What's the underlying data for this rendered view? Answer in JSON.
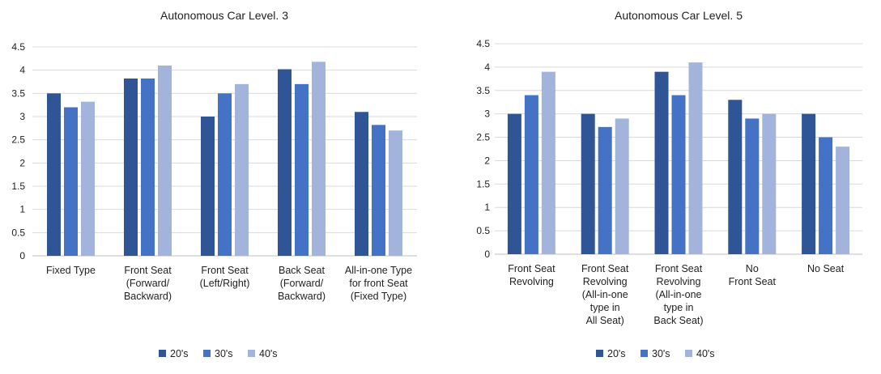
{
  "chart_data": [
    {
      "type": "bar",
      "title": "Autonomous Car Level. 3",
      "categories": [
        [
          "Fixed Type"
        ],
        [
          "Front Seat",
          "(Forward/",
          "Backward)"
        ],
        [
          "Front Seat",
          "(Left/Right)"
        ],
        [
          "Back Seat",
          "(Forward/",
          "Backward)"
        ],
        [
          "All-in-one Type",
          "for front Seat",
          "(Fixed Type)"
        ]
      ],
      "series": [
        {
          "name": "20's",
          "values": [
            3.5,
            3.82,
            3.0,
            4.02,
            3.1
          ]
        },
        {
          "name": "30's",
          "values": [
            3.2,
            3.82,
            3.5,
            3.7,
            2.82
          ]
        },
        {
          "name": "40's",
          "values": [
            3.32,
            4.1,
            3.7,
            4.18,
            2.7
          ]
        }
      ],
      "yticks": [
        "0",
        "0.5",
        "1",
        "1.5",
        "2",
        "2.5",
        "3",
        "3.5",
        "4",
        "4.5"
      ],
      "ylim": [
        0,
        4.5
      ],
      "legend_position": "bottom",
      "grid": true
    },
    {
      "type": "bar",
      "title": "Autonomous Car Level. 5",
      "categories": [
        [
          "Front Seat",
          "Revolving"
        ],
        [
          "Front Seat",
          "Revolving",
          "(All-in-one",
          "type in",
          "All Seat)"
        ],
        [
          "Front Seat",
          "Revolving",
          "(All-in-one",
          "type in",
          "Back Seat)"
        ],
        [
          "No",
          "Front Seat"
        ],
        [
          "No Seat"
        ]
      ],
      "series": [
        {
          "name": "20's",
          "values": [
            3.0,
            3.0,
            3.9,
            3.3,
            3.0
          ]
        },
        {
          "name": "30's",
          "values": [
            3.4,
            2.72,
            3.4,
            2.9,
            2.5
          ]
        },
        {
          "name": "40's",
          "values": [
            3.9,
            2.9,
            4.1,
            3.0,
            2.3
          ]
        }
      ],
      "yticks": [
        "0",
        "0.5",
        "1",
        "1.5",
        "2",
        "2.5",
        "3",
        "3.5",
        "4",
        "4.5"
      ],
      "ylim": [
        0,
        4.5
      ],
      "legend_position": "bottom",
      "grid": true
    }
  ],
  "colors": {
    "series": [
      "#2f5597",
      "#4472c4",
      "#a3b4dc"
    ],
    "grid": "#d9d9d9",
    "axis": "#bfbfbf",
    "text": "#222222"
  }
}
